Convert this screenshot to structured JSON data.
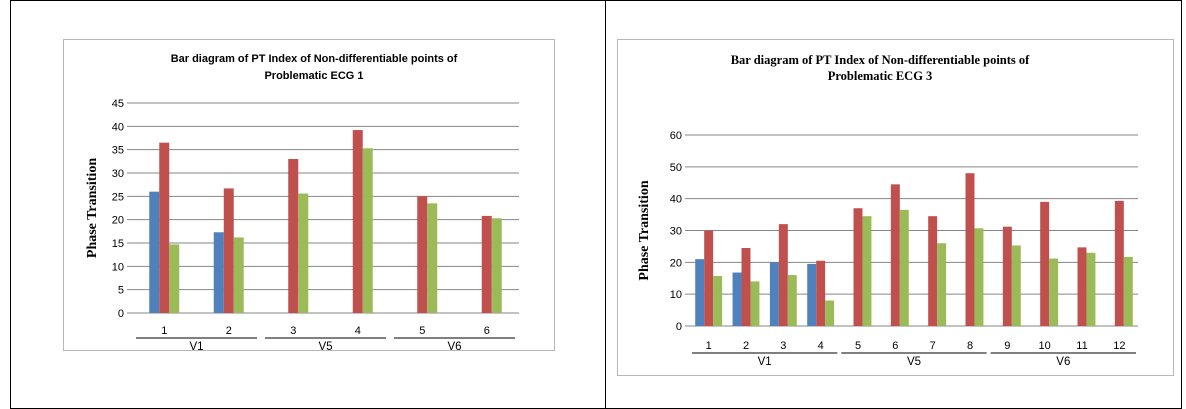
{
  "chart_data": [
    {
      "type": "bar",
      "title": [
        "Bar diagram of PT Index of Non-differentiable points of",
        "Problematic ECG 1"
      ],
      "ylabel": "Phase Transition",
      "ylim": [
        0,
        45
      ],
      "yticks": [
        0,
        5,
        10,
        15,
        20,
        25,
        30,
        35,
        40,
        45
      ],
      "grid": true,
      "categories": [
        "1",
        "2",
        "3",
        "4",
        "5",
        "6"
      ],
      "groups": [
        {
          "label": "V1",
          "categories": [
            "1",
            "2"
          ]
        },
        {
          "label": "V5",
          "categories": [
            "3",
            "4"
          ]
        },
        {
          "label": "V6",
          "categories": [
            "5",
            "6"
          ]
        }
      ],
      "series": [
        {
          "values": [
            26,
            17.3,
            0,
            0,
            0,
            0
          ]
        },
        {
          "values": [
            36.5,
            26.7,
            33,
            39.2,
            25,
            20.8
          ]
        },
        {
          "values": [
            14.7,
            16.2,
            25.6,
            35.3,
            23.5,
            20.3
          ]
        }
      ]
    },
    {
      "type": "bar",
      "title": [
        "Bar diagram of PT  Index of Non-differentiable points of",
        "Problematic ECG 3"
      ],
      "ylabel": "Phase Transition",
      "ylim": [
        0,
        60
      ],
      "yticks": [
        0,
        10,
        20,
        30,
        40,
        50,
        60
      ],
      "grid": true,
      "categories": [
        "1",
        "2",
        "3",
        "4",
        "5",
        "6",
        "7",
        "8",
        "9",
        "10",
        "11",
        "12"
      ],
      "groups": [
        {
          "label": "V1",
          "categories": [
            "1",
            "2",
            "3",
            "4"
          ]
        },
        {
          "label": "V5",
          "categories": [
            "5",
            "6",
            "7",
            "8"
          ]
        },
        {
          "label": "V6",
          "categories": [
            "9",
            "10",
            "11",
            "12"
          ]
        }
      ],
      "series": [
        {
          "values": [
            21,
            16.8,
            20,
            19.5,
            0,
            0,
            0,
            0,
            0,
            0,
            0,
            0
          ]
        },
        {
          "values": [
            30,
            24.5,
            32,
            20.5,
            37,
            44.5,
            34.5,
            48,
            31.2,
            39,
            24.7,
            39.3
          ]
        },
        {
          "values": [
            15.7,
            14,
            16,
            8,
            34.5,
            36.5,
            26,
            30.7,
            25.3,
            21.2,
            23,
            21.7
          ]
        }
      ]
    }
  ],
  "colors": {
    "series1": "#4f81bd",
    "series2": "#c0504d",
    "series3": "#9bbb59",
    "grid": "#868686"
  }
}
